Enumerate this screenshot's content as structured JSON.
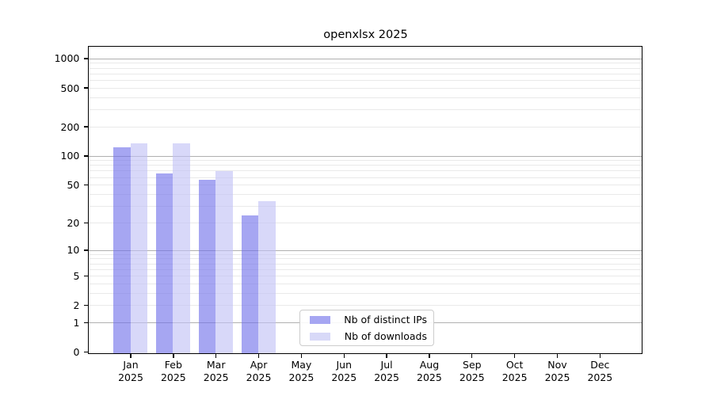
{
  "title": "openxlsx 2025",
  "chart_data": {
    "type": "bar",
    "title": "openxlsx 2025",
    "categories": [
      "Jan",
      "Feb",
      "Mar",
      "Apr",
      "May",
      "Jun",
      "Jul",
      "Aug",
      "Sep",
      "Oct",
      "Nov",
      "Dec"
    ],
    "category_year": "2025",
    "series": [
      {
        "name": "Nb of distinct IPs",
        "swatch_color": "#a6a6f2",
        "bar_color": "rgba(111,111,234,0.62)",
        "values": [
          124,
          66,
          57,
          24,
          0,
          0,
          0,
          0,
          0,
          0,
          0,
          0
        ]
      },
      {
        "name": "Nb of downloads",
        "swatch_color": "#d8d9f8",
        "bar_color": "rgba(192,192,245,0.62)",
        "values": [
          136,
          136,
          71,
          34,
          0,
          0,
          0,
          0,
          0,
          0,
          0,
          0
        ]
      }
    ],
    "y_axis": {
      "scale": "log1p",
      "tick_values": [
        0,
        1,
        2,
        5,
        10,
        20,
        50,
        100,
        200,
        500,
        1000
      ],
      "tick_labels": [
        "0",
        "1",
        "2",
        "5",
        "10",
        "20",
        "50",
        "100",
        "200",
        "500",
        "1000"
      ],
      "major_grid_values": [
        1,
        10,
        100,
        1000
      ],
      "minor_grid_values": [
        2,
        3,
        4,
        5,
        6,
        7,
        8,
        9,
        20,
        30,
        40,
        50,
        60,
        70,
        80,
        90,
        200,
        300,
        400,
        500,
        600,
        700,
        800,
        900
      ],
      "ylim": [
        0,
        1300
      ]
    },
    "xlabel": "",
    "ylabel": "",
    "grid": "on",
    "legend_position": "lower-center",
    "colors": {
      "major_grid": "#b0b0b0",
      "minor_grid": "#e9e9e9",
      "axis": "#000000",
      "background": "#ffffff"
    }
  }
}
